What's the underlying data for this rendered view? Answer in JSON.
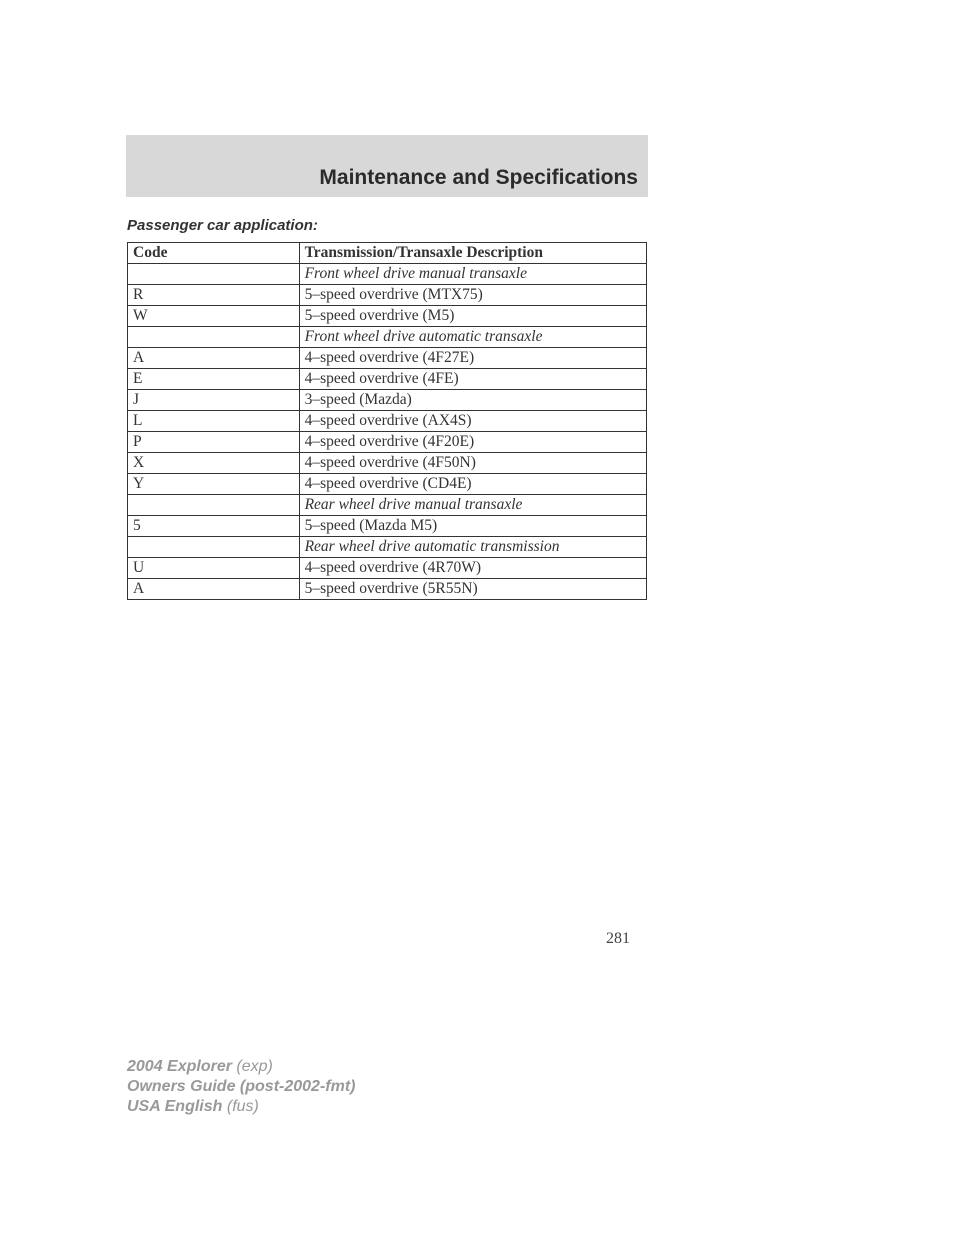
{
  "section_title": "Maintenance and Specifications",
  "subtitle": "Passenger car application:",
  "table": {
    "columns": [
      "Code",
      "Transmission/Transaxle Description"
    ],
    "rows": [
      {
        "code": "",
        "desc": "Front wheel drive manual transaxle",
        "category": true
      },
      {
        "code": "R",
        "desc": "5–speed overdrive (MTX75)",
        "category": false
      },
      {
        "code": "W",
        "desc": "5–speed overdrive (M5)",
        "category": false
      },
      {
        "code": "",
        "desc": "Front wheel drive automatic transaxle",
        "category": true
      },
      {
        "code": "A",
        "desc": "4–speed overdrive (4F27E)",
        "category": false
      },
      {
        "code": "E",
        "desc": "4–speed overdrive (4FE)",
        "category": false
      },
      {
        "code": "J",
        "desc": "3–speed (Mazda)",
        "category": false
      },
      {
        "code": "L",
        "desc": "4–speed overdrive (AX4S)",
        "category": false
      },
      {
        "code": "P",
        "desc": "4–speed overdrive (4F20E)",
        "category": false
      },
      {
        "code": "X",
        "desc": "4–speed overdrive (4F50N)",
        "category": false
      },
      {
        "code": "Y",
        "desc": "4–speed overdrive (CD4E)",
        "category": false
      },
      {
        "code": "",
        "desc": "Rear wheel drive manual transaxle",
        "category": true
      },
      {
        "code": "5",
        "desc": "5–speed (Mazda M5)",
        "category": false
      },
      {
        "code": "",
        "desc": "Rear wheel drive automatic transmission",
        "category": true
      },
      {
        "code": "U",
        "desc": "4–speed overdrive (4R70W)",
        "category": false
      },
      {
        "code": "A",
        "desc": "5–speed overdrive (5R55N)",
        "category": false
      }
    ]
  },
  "page_number": "281",
  "footer": {
    "line1_bold": "2004 Explorer",
    "line1_italic": " (exp)",
    "line2_bold": "Owners Guide (post-2002-fmt)",
    "line3_bold": "USA English",
    "line3_italic": " (fus)"
  }
}
